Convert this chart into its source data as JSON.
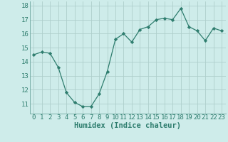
{
  "x": [
    0,
    1,
    2,
    3,
    4,
    5,
    6,
    7,
    8,
    9,
    10,
    11,
    12,
    13,
    14,
    15,
    16,
    17,
    18,
    19,
    20,
    21,
    22,
    23
  ],
  "y": [
    14.5,
    14.7,
    14.6,
    13.6,
    11.8,
    11.1,
    10.8,
    10.8,
    11.7,
    13.3,
    15.6,
    16.0,
    15.4,
    16.3,
    16.5,
    17.0,
    17.1,
    17.0,
    17.8,
    16.5,
    16.2,
    15.5,
    16.4,
    16.2
  ],
  "xlabel": "Humidex (Indice chaleur)",
  "xlim": [
    -0.5,
    23.5
  ],
  "ylim": [
    10.3,
    18.3
  ],
  "yticks": [
    11,
    12,
    13,
    14,
    15,
    16,
    17,
    18
  ],
  "xticks": [
    0,
    1,
    2,
    3,
    4,
    5,
    6,
    7,
    8,
    9,
    10,
    11,
    12,
    13,
    14,
    15,
    16,
    17,
    18,
    19,
    20,
    21,
    22,
    23
  ],
  "line_color": "#2e7d6e",
  "marker_color": "#2e7d6e",
  "bg_color": "#ceecea",
  "grid_color": "#aecfcc",
  "tick_color": "#2e7d6e",
  "font_size": 6.5,
  "xlabel_fontsize": 7.5
}
